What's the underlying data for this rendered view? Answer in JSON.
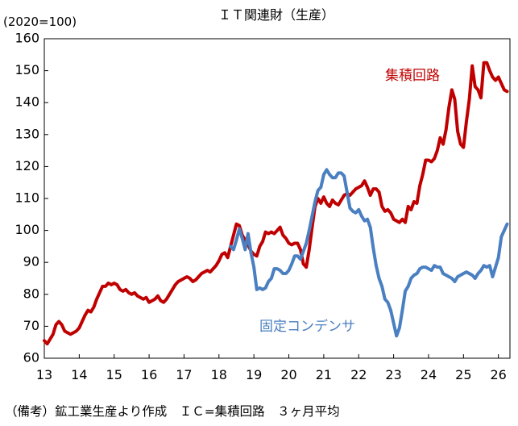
{
  "chart_data": {
    "type": "line",
    "title": "ＩＴ関連財（生産）",
    "unit_label": "(2020=100)",
    "ylim": [
      60,
      160
    ],
    "yticks": [
      "60",
      "70",
      "80",
      "90",
      "100",
      "110",
      "120",
      "130",
      "140",
      "150",
      "160"
    ],
    "x_tick_labels": [
      "13",
      "14",
      "15",
      "16",
      "17",
      "18",
      "19",
      "20",
      "21",
      "22",
      "23",
      "24",
      "25",
      "26"
    ],
    "x_tick_years": [
      2013,
      2014,
      2015,
      2016,
      2017,
      2018,
      2019,
      2020,
      2021,
      2022,
      2023,
      2024,
      2025,
      2026
    ],
    "xlim": [
      2013,
      2026.33
    ],
    "grid": false,
    "note": "（備考）鉱工業生産より作成　ＩＣ=集積回路　３ヶ月平均",
    "series": [
      {
        "name": "集積回路",
        "color": "#c00000",
        "points": [
          [
            2013.0,
            65.5
          ],
          [
            2013.083,
            64.5
          ],
          [
            2013.167,
            66
          ],
          [
            2013.25,
            67.5
          ],
          [
            2013.333,
            70.5
          ],
          [
            2013.417,
            71.5
          ],
          [
            2013.5,
            70.5
          ],
          [
            2013.583,
            68.5
          ],
          [
            2013.667,
            68
          ],
          [
            2013.75,
            67.5
          ],
          [
            2013.833,
            68
          ],
          [
            2013.917,
            68.5
          ],
          [
            2014.0,
            69.5
          ],
          [
            2014.083,
            71.5
          ],
          [
            2014.167,
            73.5
          ],
          [
            2014.25,
            75
          ],
          [
            2014.333,
            74.5
          ],
          [
            2014.417,
            76
          ],
          [
            2014.5,
            78.5
          ],
          [
            2014.583,
            80.5
          ],
          [
            2014.667,
            82.5
          ],
          [
            2014.75,
            82.5
          ],
          [
            2014.833,
            83.5
          ],
          [
            2014.917,
            83
          ],
          [
            2015.0,
            83.5
          ],
          [
            2015.083,
            83
          ],
          [
            2015.167,
            81.5
          ],
          [
            2015.25,
            81
          ],
          [
            2015.333,
            81.5
          ],
          [
            2015.417,
            80.5
          ],
          [
            2015.5,
            80
          ],
          [
            2015.583,
            80.5
          ],
          [
            2015.667,
            79.5
          ],
          [
            2015.75,
            79
          ],
          [
            2015.833,
            78.5
          ],
          [
            2015.917,
            79
          ],
          [
            2016.0,
            77.5
          ],
          [
            2016.083,
            78
          ],
          [
            2016.167,
            78.5
          ],
          [
            2016.25,
            79.5
          ],
          [
            2016.333,
            78
          ],
          [
            2016.417,
            77.5
          ],
          [
            2016.5,
            78.5
          ],
          [
            2016.583,
            80
          ],
          [
            2016.667,
            81.5
          ],
          [
            2016.75,
            83
          ],
          [
            2016.833,
            84
          ],
          [
            2016.917,
            84.5
          ],
          [
            2017.0,
            85
          ],
          [
            2017.083,
            85.5
          ],
          [
            2017.167,
            85
          ],
          [
            2017.25,
            84
          ],
          [
            2017.333,
            84.5
          ],
          [
            2017.417,
            85.5
          ],
          [
            2017.5,
            86.5
          ],
          [
            2017.583,
            87
          ],
          [
            2017.667,
            87.5
          ],
          [
            2017.75,
            87
          ],
          [
            2017.833,
            88
          ],
          [
            2017.917,
            89
          ],
          [
            2018.0,
            90.5
          ],
          [
            2018.083,
            92.5
          ],
          [
            2018.167,
            93
          ],
          [
            2018.25,
            91.5
          ],
          [
            2018.333,
            95
          ],
          [
            2018.417,
            98.5
          ],
          [
            2018.5,
            102
          ],
          [
            2018.583,
            101.5
          ],
          [
            2018.667,
            98.5
          ],
          [
            2018.75,
            97
          ],
          [
            2018.833,
            95.5
          ],
          [
            2018.917,
            93.5
          ],
          [
            2019.0,
            92.5
          ],
          [
            2019.083,
            92
          ],
          [
            2019.167,
            95
          ],
          [
            2019.25,
            96.5
          ],
          [
            2019.333,
            99.5
          ],
          [
            2019.417,
            99
          ],
          [
            2019.5,
            99.5
          ],
          [
            2019.583,
            99
          ],
          [
            2019.667,
            100
          ],
          [
            2019.75,
            101
          ],
          [
            2019.833,
            98.5
          ],
          [
            2019.917,
            97.5
          ],
          [
            2020.0,
            96
          ],
          [
            2020.083,
            95.5
          ],
          [
            2020.167,
            96
          ],
          [
            2020.25,
            96
          ],
          [
            2020.333,
            94
          ],
          [
            2020.417,
            89.5
          ],
          [
            2020.5,
            88.5
          ],
          [
            2020.583,
            94
          ],
          [
            2020.667,
            101
          ],
          [
            2020.75,
            107.5
          ],
          [
            2020.833,
            110
          ],
          [
            2020.917,
            108.5
          ],
          [
            2021.0,
            110.5
          ],
          [
            2021.083,
            108.5
          ],
          [
            2021.167,
            107.5
          ],
          [
            2021.25,
            109.5
          ],
          [
            2021.333,
            108.5
          ],
          [
            2021.417,
            108
          ],
          [
            2021.5,
            109.5
          ],
          [
            2021.583,
            111
          ],
          [
            2021.667,
            111.5
          ],
          [
            2021.75,
            111
          ],
          [
            2021.833,
            112
          ],
          [
            2021.917,
            113
          ],
          [
            2022.0,
            113.5
          ],
          [
            2022.083,
            114
          ],
          [
            2022.167,
            115.5
          ],
          [
            2022.25,
            113.5
          ],
          [
            2022.333,
            111
          ],
          [
            2022.417,
            113
          ],
          [
            2022.5,
            113
          ],
          [
            2022.583,
            112
          ],
          [
            2022.667,
            107.5
          ],
          [
            2022.75,
            106
          ],
          [
            2022.833,
            106.5
          ],
          [
            2022.917,
            105.5
          ],
          [
            2023.0,
            103.5
          ],
          [
            2023.083,
            103
          ],
          [
            2023.167,
            102.5
          ],
          [
            2023.25,
            103.5
          ],
          [
            2023.333,
            102.5
          ],
          [
            2023.417,
            107.5
          ],
          [
            2023.5,
            106.5
          ],
          [
            2023.583,
            109
          ],
          [
            2023.667,
            108.5
          ],
          [
            2023.75,
            114
          ],
          [
            2023.833,
            117.5
          ],
          [
            2023.917,
            122
          ],
          [
            2024.0,
            122
          ],
          [
            2024.083,
            121.5
          ],
          [
            2024.167,
            122.5
          ],
          [
            2024.25,
            125
          ],
          [
            2024.333,
            129
          ],
          [
            2024.417,
            127
          ],
          [
            2024.5,
            131.5
          ],
          [
            2024.583,
            138.5
          ],
          [
            2024.667,
            144
          ],
          [
            2024.75,
            141
          ],
          [
            2024.833,
            131
          ],
          [
            2024.917,
            127
          ],
          [
            2025.0,
            126
          ],
          [
            2025.083,
            134
          ],
          [
            2025.167,
            141
          ],
          [
            2025.25,
            151.5
          ],
          [
            2025.333,
            145
          ],
          [
            2025.417,
            144
          ],
          [
            2025.5,
            141.5
          ],
          [
            2025.583,
            152.5
          ],
          [
            2025.667,
            152.5
          ],
          [
            2025.75,
            150
          ],
          [
            2025.833,
            148
          ],
          [
            2025.917,
            147
          ],
          [
            2026.0,
            148
          ],
          [
            2026.083,
            146
          ],
          [
            2026.167,
            144
          ],
          [
            2026.25,
            143.5
          ]
        ]
      },
      {
        "name": "固定コンデンサ",
        "color": "#4a7fc1",
        "points": [
          [
            2018.333,
            95
          ],
          [
            2018.417,
            94
          ],
          [
            2018.5,
            97
          ],
          [
            2018.583,
            100.5
          ],
          [
            2018.667,
            97.5
          ],
          [
            2018.75,
            94
          ],
          [
            2018.833,
            99
          ],
          [
            2018.917,
            93
          ],
          [
            2019.0,
            88.5
          ],
          [
            2019.083,
            81.5
          ],
          [
            2019.167,
            82
          ],
          [
            2019.25,
            81.5
          ],
          [
            2019.333,
            82
          ],
          [
            2019.417,
            84
          ],
          [
            2019.5,
            85
          ],
          [
            2019.583,
            88
          ],
          [
            2019.667,
            88
          ],
          [
            2019.75,
            87.5
          ],
          [
            2019.833,
            86.5
          ],
          [
            2019.917,
            86.5
          ],
          [
            2020.0,
            87.5
          ],
          [
            2020.083,
            89.5
          ],
          [
            2020.167,
            92
          ],
          [
            2020.25,
            92
          ],
          [
            2020.333,
            91
          ],
          [
            2020.417,
            93.5
          ],
          [
            2020.5,
            96
          ],
          [
            2020.583,
            100
          ],
          [
            2020.667,
            104.5
          ],
          [
            2020.75,
            109
          ],
          [
            2020.833,
            112.5
          ],
          [
            2020.917,
            113.5
          ],
          [
            2021.0,
            117.5
          ],
          [
            2021.083,
            119
          ],
          [
            2021.167,
            117.5
          ],
          [
            2021.25,
            116.5
          ],
          [
            2021.333,
            116.5
          ],
          [
            2021.417,
            118
          ],
          [
            2021.5,
            118
          ],
          [
            2021.583,
            117
          ],
          [
            2021.667,
            112
          ],
          [
            2021.75,
            107
          ],
          [
            2021.833,
            106
          ],
          [
            2021.917,
            105.5
          ],
          [
            2022.0,
            106.5
          ],
          [
            2022.083,
            104.5
          ],
          [
            2022.167,
            103
          ],
          [
            2022.25,
            103.5
          ],
          [
            2022.333,
            101
          ],
          [
            2022.417,
            94.5
          ],
          [
            2022.5,
            89
          ],
          [
            2022.583,
            85
          ],
          [
            2022.667,
            82.5
          ],
          [
            2022.75,
            78.5
          ],
          [
            2022.833,
            77.5
          ],
          [
            2022.917,
            75
          ],
          [
            2023.0,
            71
          ],
          [
            2023.083,
            67
          ],
          [
            2023.167,
            69.5
          ],
          [
            2023.25,
            75
          ],
          [
            2023.333,
            81
          ],
          [
            2023.417,
            82.5
          ],
          [
            2023.5,
            85
          ],
          [
            2023.583,
            86
          ],
          [
            2023.667,
            86.5
          ],
          [
            2023.75,
            88
          ],
          [
            2023.833,
            88.5
          ],
          [
            2023.917,
            88.5
          ],
          [
            2024.0,
            88
          ],
          [
            2024.083,
            87.5
          ],
          [
            2024.167,
            89
          ],
          [
            2024.25,
            88.5
          ],
          [
            2024.333,
            88.5
          ],
          [
            2024.417,
            86.5
          ],
          [
            2024.5,
            86
          ],
          [
            2024.583,
            85.5
          ],
          [
            2024.667,
            85
          ],
          [
            2024.75,
            84
          ],
          [
            2024.833,
            85.5
          ],
          [
            2024.917,
            86
          ],
          [
            2025.0,
            86.5
          ],
          [
            2025.083,
            87
          ],
          [
            2025.167,
            86.5
          ],
          [
            2025.25,
            86
          ],
          [
            2025.333,
            85
          ],
          [
            2025.417,
            86.5
          ],
          [
            2025.5,
            87.5
          ],
          [
            2025.583,
            89
          ],
          [
            2025.667,
            88.5
          ],
          [
            2025.75,
            89
          ],
          [
            2025.833,
            85.5
          ],
          [
            2025.917,
            88.5
          ],
          [
            2026.0,
            91.5
          ],
          [
            2026.083,
            98
          ],
          [
            2026.167,
            100
          ],
          [
            2026.25,
            102
          ]
        ]
      }
    ]
  }
}
